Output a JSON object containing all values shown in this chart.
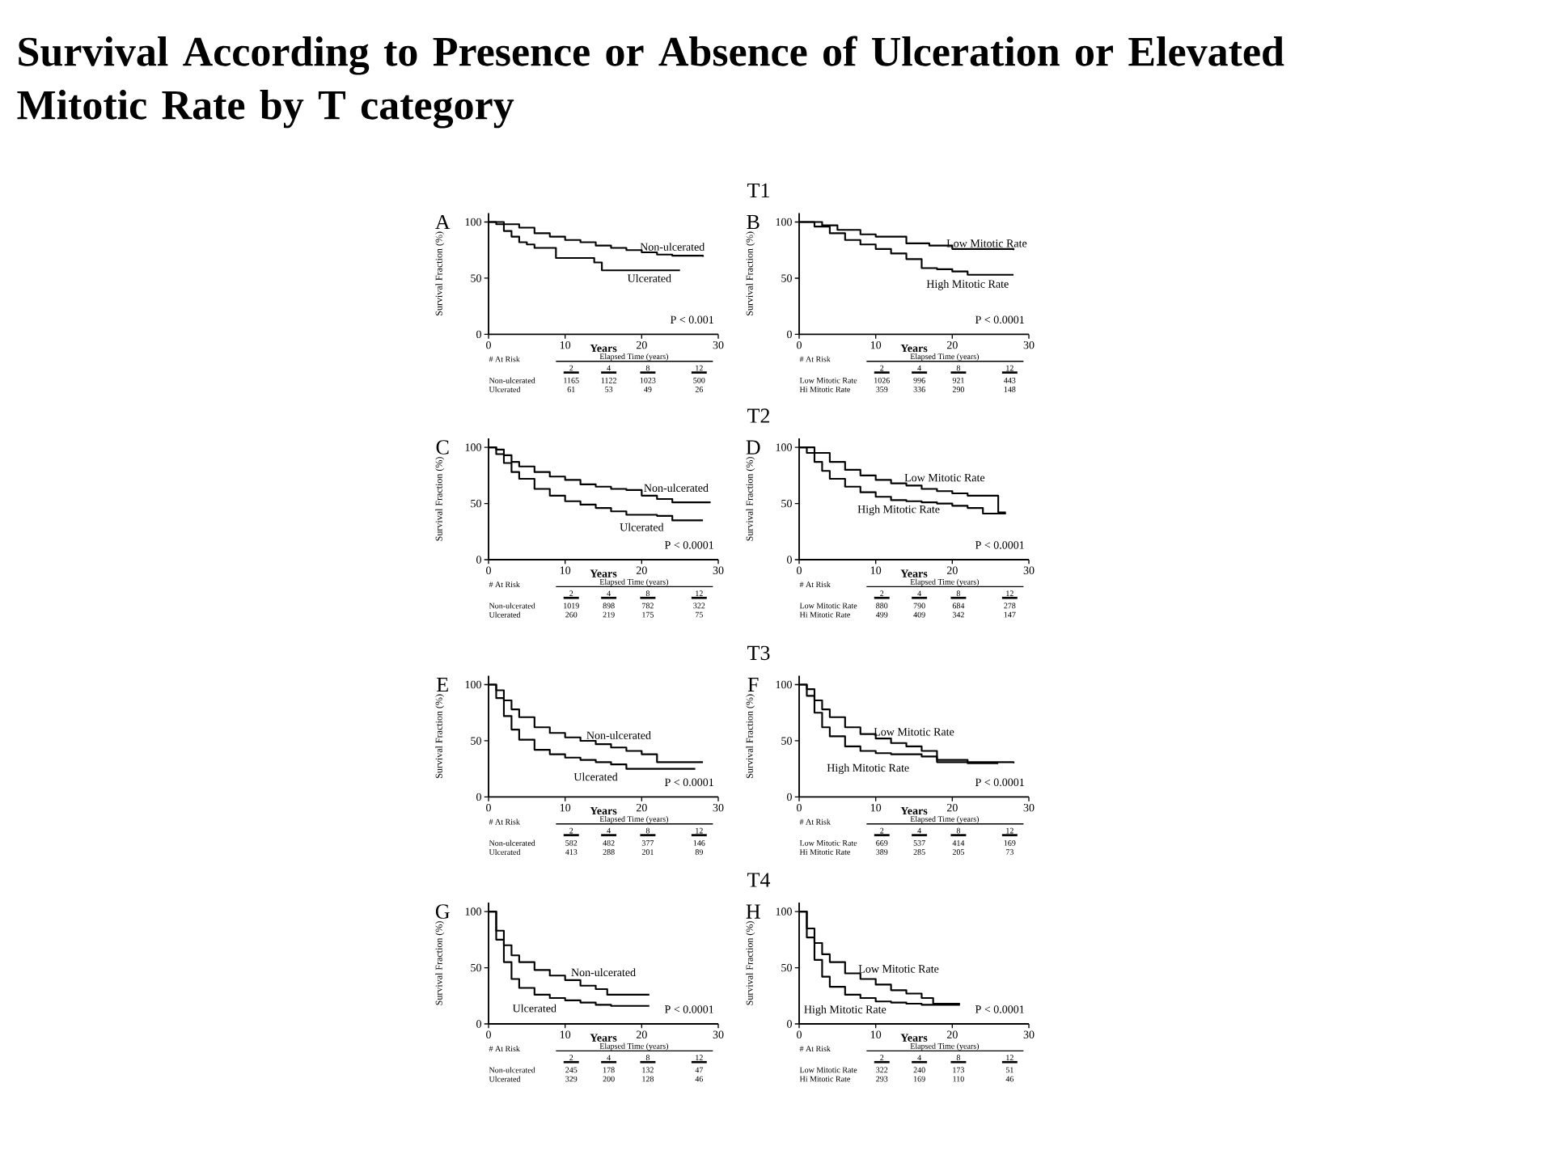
{
  "chart_data": [
    {
      "type": "other",
      "title": "Survival According to Presence or Absence of Ulceration or Elevated Mitotic Rate by T category",
      "annotations": [
        "T1",
        "T2",
        "T3",
        "T4"
      ]
    },
    {
      "type": "step",
      "title": "A",
      "xlabel": "Years",
      "ylabel": "Survival Fraction (%)",
      "xlim": [
        0,
        30
      ],
      "ylim": [
        0,
        108
      ],
      "xticks": [
        0,
        10,
        20,
        30
      ],
      "yticks": [
        0,
        50,
        100
      ],
      "series": [
        {
          "name": "Non-ulcerated",
          "color": "#000000",
          "x": [
            0,
            2,
            4,
            6,
            8,
            10,
            12,
            14,
            16,
            18,
            20,
            22,
            24,
            28
          ],
          "values": [
            100,
            98,
            95,
            90,
            87,
            84,
            82,
            79,
            77,
            75,
            73,
            71,
            70,
            69
          ]
        },
        {
          "name": "Ulcerated",
          "color": "#000000",
          "x": [
            0,
            1,
            2,
            3,
            4,
            5,
            6,
            8.8,
            13.8,
            14.8,
            25
          ],
          "values": [
            100,
            98,
            92,
            87,
            82,
            80,
            77,
            68,
            64,
            57,
            57
          ]
        }
      ],
      "annotations": [
        "P < 0.001",
        "# At Risk",
        "Elapsed Time (years)",
        "2",
        "4",
        "8",
        "12",
        "Non-ulcerated",
        "1165",
        "1122",
        "1023",
        "500",
        "Ulcerated",
        "61",
        "53",
        "49",
        "26"
      ]
    },
    {
      "type": "step",
      "title": "B",
      "xlabel": "Years",
      "ylabel": "Survival Fraction (%)",
      "xlim": [
        0,
        30
      ],
      "ylim": [
        0,
        108
      ],
      "xticks": [
        0,
        10,
        20,
        30
      ],
      "yticks": [
        0,
        50,
        100
      ],
      "series": [
        {
          "name": "Low Mitotic Rate",
          "color": "#000000",
          "x": [
            0,
            3,
            5,
            8,
            10,
            14,
            17,
            20,
            28
          ],
          "values": [
            100,
            97,
            93,
            89,
            87,
            81,
            79,
            76,
            75
          ]
        },
        {
          "name": "High Mitotic Rate",
          "color": "#000000",
          "x": [
            0,
            2,
            4,
            6,
            8,
            10,
            12,
            14,
            16,
            18,
            20,
            22,
            28
          ],
          "values": [
            100,
            96,
            90,
            84,
            80,
            76,
            72,
            67,
            59,
            58,
            56,
            53,
            53
          ]
        }
      ],
      "annotations": [
        "P < 0.0001",
        "# At Risk",
        "Elapsed Time (years)",
        "2",
        "4",
        "8",
        "12",
        "Low Mitotic Rate",
        "1026",
        "996",
        "921",
        "443",
        "Hi Mitotic Rate",
        "359",
        "336",
        "290",
        "148"
      ]
    },
    {
      "type": "step",
      "title": "C",
      "xlabel": "Years",
      "ylabel": "Survival Fraction (%)",
      "xlim": [
        0,
        30
      ],
      "ylim": [
        0,
        108
      ],
      "xticks": [
        0,
        10,
        20,
        30
      ],
      "yticks": [
        0,
        50,
        100
      ],
      "series": [
        {
          "name": "Non-ulcerated",
          "color": "#000000",
          "x": [
            0,
            1,
            2,
            3,
            4,
            6,
            8,
            10,
            12,
            14,
            16,
            18,
            20,
            22,
            24,
            29
          ],
          "values": [
            100,
            98,
            93,
            87,
            83,
            78,
            74,
            71,
            67,
            65,
            63,
            62,
            57,
            54,
            51,
            51
          ]
        },
        {
          "name": "Ulcerated",
          "color": "#000000",
          "x": [
            0,
            1,
            2,
            3,
            4,
            6,
            8,
            10,
            12,
            14,
            16,
            18,
            22,
            24,
            28
          ],
          "values": [
            100,
            94,
            86,
            78,
            72,
            63,
            57,
            52,
            49,
            46,
            43,
            40,
            39,
            35,
            35
          ]
        }
      ],
      "annotations": [
        "P < 0.0001",
        "# At Risk",
        "Elapsed Time (years)",
        "2",
        "4",
        "8",
        "12",
        "Non-ulcerated",
        "1019",
        "898",
        "782",
        "322",
        "Ulcerated",
        "260",
        "219",
        "175",
        "75"
      ]
    },
    {
      "type": "step",
      "title": "D",
      "xlabel": "Years",
      "ylabel": "Survival Fraction (%)",
      "xlim": [
        0,
        30
      ],
      "ylim": [
        0,
        108
      ],
      "xticks": [
        0,
        10,
        20,
        30
      ],
      "yticks": [
        0,
        50,
        100
      ],
      "series": [
        {
          "name": "Low Mitotic Rate",
          "color": "#000000",
          "x": [
            0,
            2,
            4,
            6,
            8,
            10,
            12,
            14,
            16,
            18,
            20,
            22,
            26,
            27
          ],
          "values": [
            100,
            95,
            87,
            80,
            75,
            71,
            68,
            66,
            63,
            61,
            59,
            57,
            42,
            42
          ]
        },
        {
          "name": "High Mitotic Rate",
          "color": "#000000",
          "x": [
            0,
            1,
            2,
            3,
            4,
            6,
            8,
            10,
            12,
            14,
            16,
            18,
            20,
            22,
            24,
            27
          ],
          "values": [
            100,
            95,
            87,
            79,
            72,
            65,
            60,
            56,
            53,
            52,
            51,
            50,
            48,
            46,
            41,
            41
          ]
        }
      ],
      "annotations": [
        "P < 0.0001",
        "# At Risk",
        "Elapsed Time (years)",
        "2",
        "4",
        "8",
        "12",
        "Low Mitotic Rate",
        "880",
        "790",
        "684",
        "278",
        "Hi Mitotic Rate",
        "499",
        "409",
        "342",
        "147"
      ]
    },
    {
      "type": "step",
      "title": "E",
      "xlabel": "Years",
      "ylabel": "Survival Fraction (%)",
      "xlim": [
        0,
        30
      ],
      "ylim": [
        0,
        108
      ],
      "xticks": [
        0,
        10,
        20,
        30
      ],
      "yticks": [
        0,
        50,
        100
      ],
      "series": [
        {
          "name": "Non-ulcerated",
          "color": "#000000",
          "x": [
            0,
            1,
            2,
            3,
            4,
            6,
            8,
            10,
            12,
            14,
            16,
            18,
            20,
            22,
            28
          ],
          "values": [
            100,
            95,
            86,
            78,
            71,
            62,
            57,
            53,
            50,
            47,
            44,
            41,
            38,
            31,
            31
          ]
        },
        {
          "name": "Ulcerated",
          "color": "#000000",
          "x": [
            0,
            1,
            2,
            3,
            4,
            6,
            8,
            10,
            12,
            14,
            16,
            18,
            27
          ],
          "values": [
            100,
            88,
            72,
            60,
            51,
            42,
            38,
            35,
            33,
            31,
            29,
            25,
            25
          ]
        }
      ],
      "annotations": [
        "P < 0.0001",
        "# At Risk",
        "Elapsed Time (years)",
        "2",
        "4",
        "8",
        "12",
        "Non-ulcerated",
        "582",
        "482",
        "377",
        "146",
        "Ulcerated",
        "413",
        "288",
        "201",
        "89"
      ]
    },
    {
      "type": "step",
      "title": "F",
      "xlabel": "Years",
      "ylabel": "Survival Fraction (%)",
      "xlim": [
        0,
        30
      ],
      "ylim": [
        0,
        108
      ],
      "xticks": [
        0,
        10,
        20,
        30
      ],
      "yticks": [
        0,
        50,
        100
      ],
      "series": [
        {
          "name": "Low Mitotic Rate",
          "color": "#000000",
          "x": [
            0,
            1,
            2,
            3,
            4,
            6,
            8,
            10,
            12,
            14,
            16,
            18,
            22,
            28
          ],
          "values": [
            100,
            96,
            86,
            78,
            71,
            62,
            56,
            52,
            48,
            45,
            41,
            33,
            31,
            30
          ]
        },
        {
          "name": "High Mitotic Rate",
          "color": "#000000",
          "x": [
            0,
            1,
            2,
            3,
            4,
            6,
            8,
            10,
            12,
            16,
            18,
            22,
            26
          ],
          "values": [
            100,
            90,
            75,
            62,
            54,
            45,
            41,
            39,
            38,
            36,
            31,
            30,
            30
          ]
        }
      ],
      "annotations": [
        "P < 0.0001",
        "# At Risk",
        "Elapsed Time (years)",
        "2",
        "4",
        "8",
        "12",
        "Low Mitotic Rate",
        "669",
        "537",
        "414",
        "169",
        "Hi Mitotic Rate",
        "389",
        "285",
        "205",
        "73"
      ]
    },
    {
      "type": "step",
      "title": "G",
      "xlabel": "Years",
      "ylabel": "Survival Fraction (%)",
      "xlim": [
        0,
        30
      ],
      "ylim": [
        0,
        108
      ],
      "xticks": [
        0,
        10,
        20,
        30
      ],
      "yticks": [
        0,
        50,
        100
      ],
      "series": [
        {
          "name": "Non-ulcerated",
          "color": "#000000",
          "x": [
            0,
            1,
            2,
            3,
            4,
            6,
            8,
            10,
            12,
            14,
            15.5,
            21
          ],
          "values": [
            100,
            83,
            70,
            61,
            55,
            48,
            43,
            39,
            34,
            31,
            26,
            26
          ]
        },
        {
          "name": "Ulcerated",
          "color": "#000000",
          "x": [
            0,
            1,
            2,
            3,
            4,
            6,
            8,
            10,
            12,
            14,
            16,
            21
          ],
          "values": [
            100,
            75,
            55,
            40,
            32,
            26,
            23,
            21,
            19,
            17,
            16,
            16
          ]
        }
      ],
      "annotations": [
        "P < 0.0001",
        "# At Risk",
        "Elapsed Time (years)",
        "2",
        "4",
        "8",
        "12",
        "Non-ulcerated",
        "245",
        "178",
        "132",
        "47",
        "Ulcerated",
        "329",
        "200",
        "128",
        "46"
      ]
    },
    {
      "type": "step",
      "title": "H",
      "xlabel": "Years",
      "ylabel": "Survival Fraction (%)",
      "xlim": [
        0,
        30
      ],
      "ylim": [
        0,
        108
      ],
      "xticks": [
        0,
        10,
        20,
        30
      ],
      "yticks": [
        0,
        50,
        100
      ],
      "series": [
        {
          "name": "Low Mitotic Rate",
          "color": "#000000",
          "x": [
            0,
            1,
            2,
            3,
            4,
            6,
            8,
            10,
            12,
            14,
            16,
            17.5,
            21
          ],
          "values": [
            100,
            85,
            72,
            62,
            55,
            45,
            40,
            35,
            30,
            27,
            23,
            18,
            18
          ]
        },
        {
          "name": "High Mitotic Rate",
          "color": "#000000",
          "x": [
            0,
            1,
            2,
            3,
            4,
            6,
            8,
            10,
            12,
            14,
            16,
            21
          ],
          "values": [
            100,
            77,
            57,
            42,
            33,
            26,
            23,
            20,
            19,
            18,
            17,
            17
          ]
        }
      ],
      "annotations": [
        "P < 0.0001",
        "# At Risk",
        "Elapsed Time (years)",
        "2",
        "4",
        "8",
        "12",
        "Low Mitotic Rate",
        "322",
        "240",
        "173",
        "51",
        "Hi Mitotic Rate",
        "293",
        "169",
        "110",
        "46"
      ]
    }
  ]
}
